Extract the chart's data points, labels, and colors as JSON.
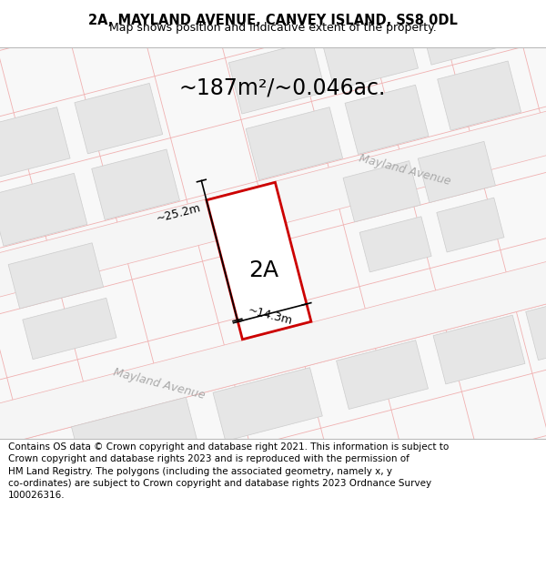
{
  "title": "2A, MAYLAND AVENUE, CANVEY ISLAND, SS8 0DL",
  "subtitle": "Map shows position and indicative extent of the property.",
  "footer": "Contains OS data © Crown copyright and database right 2021. This information is subject to\nCrown copyright and database rights 2023 and is reproduced with the permission of\nHM Land Registry. The polygons (including the associated geometry, namely x, y\nco-ordinates) are subject to Crown copyright and database rights 2023 Ordnance Survey\n100026316.",
  "area_text": "~187m²/~0.046ac.",
  "label_2a": "2A",
  "dim_height": "~25.2m",
  "dim_width": "~14.3m",
  "street_name1": "Mayland Avenue",
  "street_name2": "Mayland Avenue",
  "block_color": "#e6e6e6",
  "edge_color": "#cccccc",
  "road_line_color": "#f0b0b0",
  "plot_outline_color": "#cc0000",
  "title_fontsize": 10.5,
  "subtitle_fontsize": 9,
  "footer_fontsize": 7.5,
  "area_fontsize": 17,
  "label_fontsize": 18,
  "dim_fontsize": 9,
  "street_fontsize": 9
}
